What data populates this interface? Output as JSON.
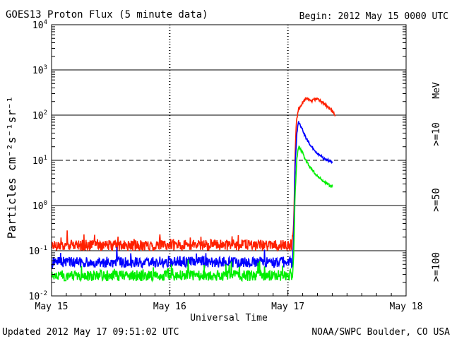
{
  "chart_data": {
    "type": "line",
    "title": "GOES13 Proton Flux (5 minute data)",
    "begin_label": "Begin: 2012 May 15 0000 UTC",
    "xlabel": "Universal Time",
    "ylabel": "Particles cm⁻²s⁻¹sr⁻¹",
    "yscale": "log",
    "ylim_log10": [
      -2,
      4
    ],
    "xlim_days": [
      0,
      3
    ],
    "x_ticks": [
      {
        "day": 0,
        "label": "May 15"
      },
      {
        "day": 1,
        "label": "May 16"
      },
      {
        "day": 2,
        "label": "May 17"
      },
      {
        "day": 3,
        "label": "May 18"
      }
    ],
    "y_ticks": [
      {
        "exp": -2,
        "base": "10",
        "sup": "-2"
      },
      {
        "exp": -1,
        "base": "10",
        "sup": "-1"
      },
      {
        "exp": 0,
        "base": "10",
        "sup": "0"
      },
      {
        "exp": 1,
        "base": "10",
        "sup": "1"
      },
      {
        "exp": 2,
        "base": "10",
        "sup": "2"
      },
      {
        "exp": 3,
        "base": "10",
        "sup": "3"
      },
      {
        "exp": 4,
        "base": "10",
        "sup": "4"
      }
    ],
    "reference_lines": [
      {
        "exp": -1,
        "style": "solid"
      },
      {
        "exp": 0,
        "style": "solid"
      },
      {
        "exp": 1,
        "style": "dashed"
      },
      {
        "exp": 2,
        "style": "solid"
      },
      {
        "exp": 3,
        "style": "solid"
      }
    ],
    "series": [
      {
        "name": ">=10",
        "color": "#ff2000",
        "noise_amplitude_log10": 0.12,
        "points": [
          [
            0,
            -0.88
          ],
          [
            0.3,
            -0.88
          ],
          [
            0.6,
            -0.89
          ],
          [
            1.0,
            -0.88
          ],
          [
            1.4,
            -0.87
          ],
          [
            1.8,
            -0.88
          ],
          [
            2.04,
            -0.88
          ],
          [
            2.05,
            -0.3
          ],
          [
            2.06,
            1.0
          ],
          [
            2.07,
            1.8
          ],
          [
            2.09,
            2.15
          ],
          [
            2.12,
            2.25
          ],
          [
            2.15,
            2.38
          ],
          [
            2.2,
            2.32
          ],
          [
            2.25,
            2.37
          ],
          [
            2.28,
            2.3
          ],
          [
            2.33,
            2.2
          ],
          [
            2.38,
            2.07
          ],
          [
            2.4,
            2.0
          ]
        ]
      },
      {
        "name": ">=50",
        "color": "#0000ff",
        "noise_amplitude_log10": 0.12,
        "points": [
          [
            0,
            -1.25
          ],
          [
            0.3,
            -1.25
          ],
          [
            0.6,
            -1.26
          ],
          [
            1.0,
            -1.24
          ],
          [
            1.4,
            -1.25
          ],
          [
            1.8,
            -1.25
          ],
          [
            2.04,
            -1.25
          ],
          [
            2.05,
            -0.6
          ],
          [
            2.06,
            0.8
          ],
          [
            2.075,
            1.6
          ],
          [
            2.09,
            1.85
          ],
          [
            2.12,
            1.7
          ],
          [
            2.15,
            1.5
          ],
          [
            2.2,
            1.3
          ],
          [
            2.25,
            1.15
          ],
          [
            2.3,
            1.05
          ],
          [
            2.35,
            0.98
          ],
          [
            2.38,
            0.96
          ]
        ]
      },
      {
        "name": ">=100",
        "color": "#00ee00",
        "noise_amplitude_log10": 0.12,
        "points": [
          [
            0,
            -1.55
          ],
          [
            0.3,
            -1.55
          ],
          [
            0.6,
            -1.56
          ],
          [
            1.0,
            -1.54
          ],
          [
            1.4,
            -1.55
          ],
          [
            1.8,
            -1.55
          ],
          [
            2.04,
            -1.55
          ],
          [
            2.05,
            -1.0
          ],
          [
            2.06,
            0.2
          ],
          [
            2.075,
            1.0
          ],
          [
            2.09,
            1.3
          ],
          [
            2.12,
            1.2
          ],
          [
            2.15,
            1.0
          ],
          [
            2.2,
            0.8
          ],
          [
            2.25,
            0.65
          ],
          [
            2.3,
            0.55
          ],
          [
            2.35,
            0.45
          ],
          [
            2.38,
            0.42
          ]
        ]
      }
    ],
    "right_labels": {
      "unit": "MeV",
      "items": [
        {
          "text": ">=10",
          "color": "#ff2000"
        },
        {
          "text": ">=50",
          "color": "#0000ff"
        },
        {
          "text": ">=100",
          "color": "#00ee00"
        }
      ]
    }
  },
  "footer": {
    "updated": "Updated 2012 May 17 09:51:02 UTC",
    "credit": "NOAA/SWPC Boulder, CO USA"
  }
}
